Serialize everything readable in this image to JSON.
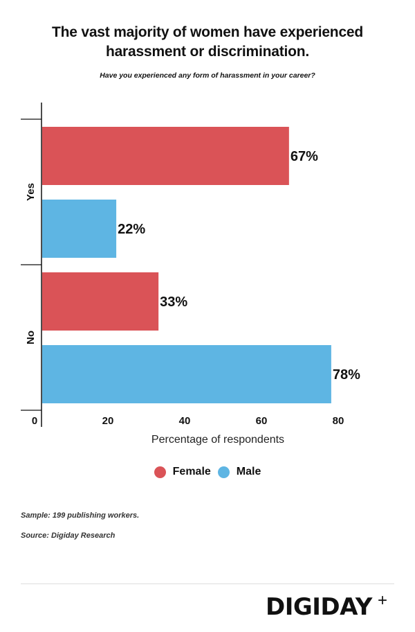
{
  "header": {
    "title_line1": "The vast majority of women have experienced",
    "title_line2": "harassment or discrimination.",
    "subtitle": "Have you experienced any form of harassment in your career?"
  },
  "chart_data": {
    "type": "bar",
    "orientation": "horizontal",
    "title": "The vast majority of women have experienced harassment or discrimination.",
    "subtitle": "Have you experienced any form of harassment in your career?",
    "categories": [
      "Yes",
      "No"
    ],
    "series": [
      {
        "name": "Female",
        "color": "#DA5357",
        "values": [
          67,
          33
        ],
        "labels": [
          "67%",
          "33%"
        ]
      },
      {
        "name": "Male",
        "color": "#5EB5E3",
        "values": [
          22,
          78
        ],
        "labels": [
          "22%",
          "78%"
        ]
      }
    ],
    "xlabel": "Percentage of respondents",
    "ylabel": "",
    "xlim": [
      0,
      80
    ],
    "xticks": [
      "0",
      "20",
      "40",
      "60",
      "80"
    ],
    "grid": false,
    "legend_position": "bottom-center"
  },
  "legend": {
    "items": [
      {
        "label": "Female",
        "color": "#DA5357"
      },
      {
        "label": "Male",
        "color": "#5EB5E3"
      }
    ]
  },
  "footer": {
    "sample": "Sample: 199 publishing workers.",
    "source": "Source: Digiday Research",
    "logo": "DIGIDAY",
    "logo_mark": "+"
  }
}
